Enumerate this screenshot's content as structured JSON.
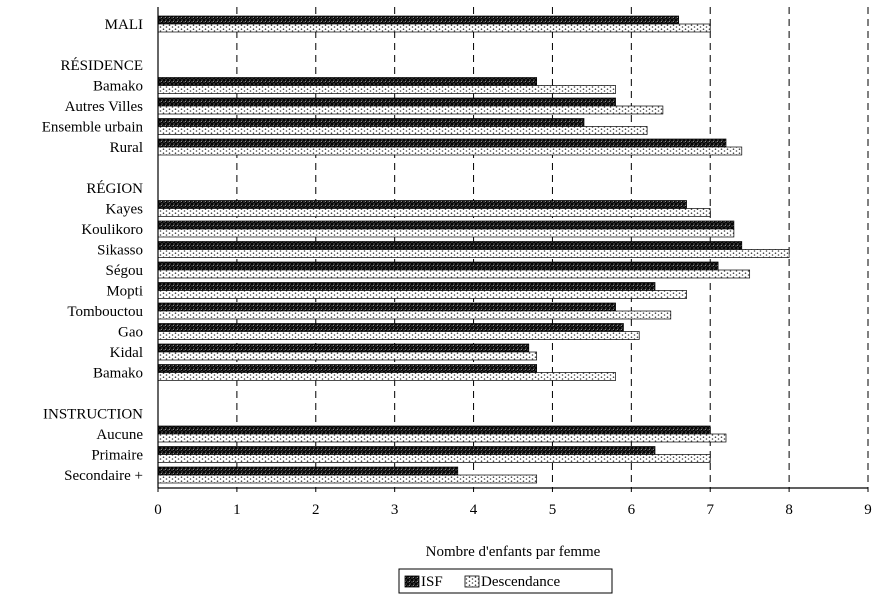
{
  "chart_data": {
    "type": "bar",
    "orientation": "horizontal",
    "xlabel": "Nombre d'enfants par femme",
    "xlim": [
      0,
      9
    ],
    "xticks": [
      "0",
      "1",
      "2",
      "3",
      "4",
      "5",
      "6",
      "7",
      "8",
      "9"
    ],
    "grid": "vertical dashed",
    "legend_position": "bottom-center",
    "rows": [
      {
        "label": "MALI",
        "isf": 6.6,
        "desc": 7.0
      },
      {
        "label": "",
        "gap": true
      },
      {
        "label": "RÉSIDENCE",
        "header": true
      },
      {
        "label": "Bamako",
        "isf": 4.8,
        "desc": 5.8
      },
      {
        "label": "Autres Villes",
        "isf": 5.8,
        "desc": 6.4
      },
      {
        "label": "Ensemble urbain",
        "isf": 5.4,
        "desc": 6.2
      },
      {
        "label": "Rural",
        "isf": 7.2,
        "desc": 7.4
      },
      {
        "label": "",
        "gap": true
      },
      {
        "label": "RÉGION",
        "header": true
      },
      {
        "label": "Kayes",
        "isf": 6.7,
        "desc": 7.0
      },
      {
        "label": "Koulikoro",
        "isf": 7.3,
        "desc": 7.3
      },
      {
        "label": "Sikasso",
        "isf": 7.4,
        "desc": 8.0
      },
      {
        "label": "Ségou",
        "isf": 7.1,
        "desc": 7.5
      },
      {
        "label": "Mopti",
        "isf": 6.3,
        "desc": 6.7
      },
      {
        "label": "Tombouctou",
        "isf": 5.8,
        "desc": 6.5
      },
      {
        "label": "Gao",
        "isf": 5.9,
        "desc": 6.1
      },
      {
        "label": "Kidal",
        "isf": 4.7,
        "desc": 4.8
      },
      {
        "label": "Bamako",
        "isf": 4.8,
        "desc": 5.8
      },
      {
        "label": "",
        "gap": true
      },
      {
        "label": "INSTRUCTION",
        "header": true
      },
      {
        "label": "Aucune",
        "isf": 7.0,
        "desc": 7.2
      },
      {
        "label": "Primaire",
        "isf": 6.3,
        "desc": 7.0
      },
      {
        "label": "Secondaire +",
        "isf": 3.8,
        "desc": 4.8
      }
    ],
    "series": [
      {
        "name": "ISF",
        "key": "isf",
        "pattern": "dark-crosshatch"
      },
      {
        "name": "Descendance",
        "key": "desc",
        "pattern": "light-dotted"
      }
    ]
  }
}
